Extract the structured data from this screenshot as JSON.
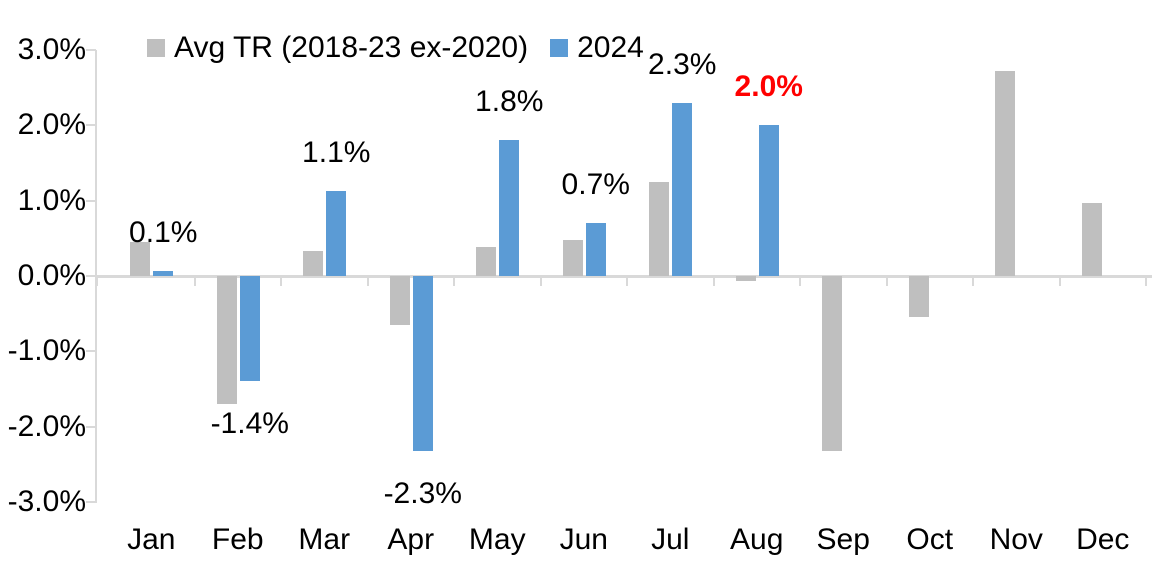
{
  "chart_data": {
    "type": "bar",
    "title": "",
    "xlabel": "",
    "ylabel": "",
    "ylim": [
      -3.0,
      3.0
    ],
    "grid": false,
    "legend_position": "top",
    "categories": [
      "Jan",
      "Feb",
      "Mar",
      "Apr",
      "May",
      "Jun",
      "Jul",
      "Aug",
      "Sep",
      "Oct",
      "Nov",
      "Dec"
    ],
    "series": [
      {
        "name": "Avg TR (2018-23 ex-2020)",
        "color": "#BFBFBF",
        "values": [
          0.45,
          -1.7,
          0.33,
          -0.65,
          0.39,
          0.48,
          1.25,
          -0.07,
          -2.33,
          -0.55,
          2.72,
          0.97
        ]
      },
      {
        "name": "2024",
        "color": "#5B9BD5",
        "values": [
          0.07,
          -1.4,
          1.13,
          -2.33,
          1.8,
          0.7,
          2.3,
          2.0,
          null,
          null,
          null,
          null
        ]
      }
    ],
    "data_labels": [
      {
        "index": 0,
        "month": "Jan",
        "text": "0.1%",
        "color": "#000000",
        "bold": false
      },
      {
        "index": 1,
        "month": "Feb",
        "text": "-1.4%",
        "color": "#000000",
        "bold": false
      },
      {
        "index": 2,
        "month": "Mar",
        "text": "1.1%",
        "color": "#000000",
        "bold": false
      },
      {
        "index": 3,
        "month": "Apr",
        "text": "-2.3%",
        "color": "#000000",
        "bold": false
      },
      {
        "index": 4,
        "month": "May",
        "text": "1.8%",
        "color": "#000000",
        "bold": false
      },
      {
        "index": 5,
        "month": "Jun",
        "text": "0.7%",
        "color": "#000000",
        "bold": false
      },
      {
        "index": 6,
        "month": "Jul",
        "text": "2.3%",
        "color": "#000000",
        "bold": false
      },
      {
        "index": 7,
        "month": "Aug",
        "text": "2.0%",
        "color": "#FF0000",
        "bold": true
      }
    ],
    "y_axis": {
      "tick_labels": [
        "3.0%",
        "2.0%",
        "1.0%",
        "0.0%",
        "-1.0%",
        "-2.0%",
        "-3.0%"
      ],
      "tick_values": [
        3,
        2,
        1,
        0,
        -1,
        -2,
        -3
      ]
    },
    "axis_color": "#D9D9D9",
    "text_color": "#000000"
  }
}
